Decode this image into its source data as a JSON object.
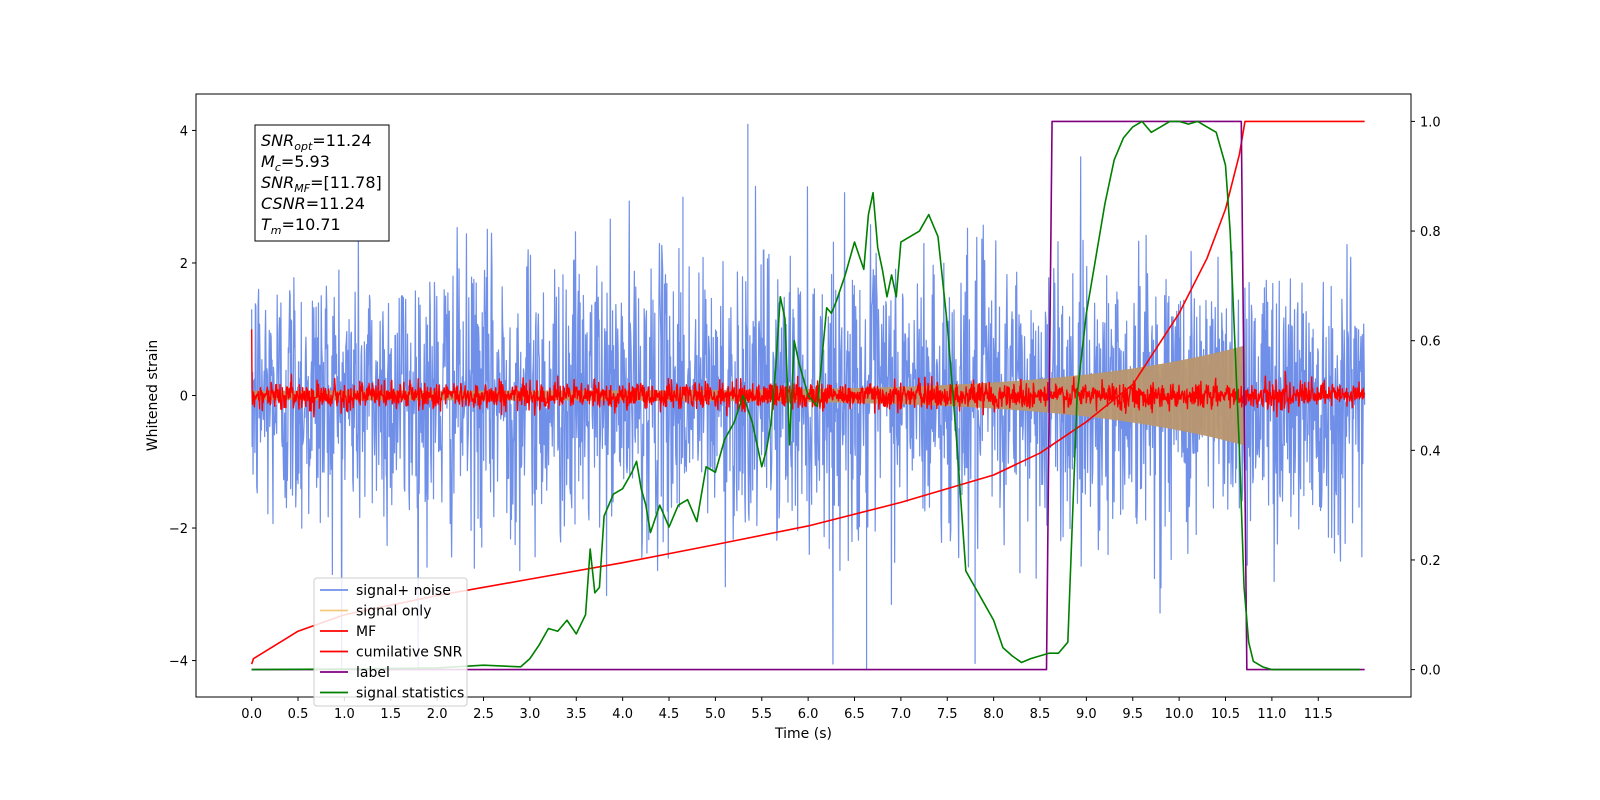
{
  "chart_data": {
    "type": "line",
    "xlabel": "Time (s)",
    "ylabel": "Whitened strain",
    "y2label": "",
    "xlim": [
      -0.6,
      12.5
    ],
    "ylim": [
      -4.55,
      4.55
    ],
    "y2lim": [
      -0.05,
      1.05
    ],
    "x_ticks": [
      "0.0",
      "0.5",
      "1.0",
      "1.5",
      "2.0",
      "2.5",
      "3.0",
      "3.5",
      "4.0",
      "4.5",
      "5.0",
      "5.5",
      "6.0",
      "6.5",
      "7.0",
      "7.5",
      "8.0",
      "8.5",
      "9.0",
      "9.5",
      "10.0",
      "10.5",
      "11.0",
      "11.5"
    ],
    "y_ticks": [
      "−4",
      "−2",
      "0",
      "2",
      "4"
    ],
    "y2_ticks": [
      "0.0",
      "0.2",
      "0.4",
      "0.6",
      "0.8",
      "1.0"
    ],
    "annotation": [
      {
        "base": "SNR",
        "sub": "opt",
        "value": "=11.24"
      },
      {
        "base": "M",
        "sub": "c",
        "value": "=5.93"
      },
      {
        "base": "SNR",
        "sub": "MF",
        "value": "=[11.78]"
      },
      {
        "base": "CSNR",
        "sub": "",
        "value": "=11.24"
      },
      {
        "base": "T",
        "sub": "m",
        "value": "=10.71"
      }
    ],
    "legend_position": "lower-left",
    "series": [
      {
        "name": "signal+ noise",
        "color": "#6f8fe8",
        "axis": "left",
        "kind": "noise",
        "duration": 12.0,
        "std": 1.05,
        "range": [
          -4.15,
          4.1
        ]
      },
      {
        "name": "signal only",
        "color": "#f5c97a",
        "axis": "left",
        "kind": "chirp",
        "t_merge": 10.71,
        "amplitude_start": 0.05,
        "amplitude_peak": 0.7
      },
      {
        "name": "MF",
        "color": "#ff0000",
        "axis": "left",
        "kind": "noise",
        "duration": 12.0,
        "std": 0.1
      },
      {
        "name": "cumilative SNR",
        "color": "#ff0000",
        "axis": "right",
        "x": [
          0.0,
          0.02,
          0.5,
          1.0,
          2.0,
          3.0,
          4.0,
          5.0,
          6.0,
          7.0,
          8.0,
          8.5,
          9.0,
          9.5,
          10.0,
          10.3,
          10.5,
          10.65,
          10.71,
          12.0
        ],
        "y": [
          0.01,
          0.02,
          0.07,
          0.1,
          0.135,
          0.165,
          0.195,
          0.228,
          0.262,
          0.305,
          0.355,
          0.395,
          0.452,
          0.52,
          0.65,
          0.75,
          0.84,
          0.94,
          1.0,
          1.0
        ]
      },
      {
        "name": "label",
        "color": "#800080",
        "axis": "right",
        "x": [
          0.0,
          8.57,
          8.63,
          10.67,
          10.73,
          12.0
        ],
        "y": [
          0.0,
          0.0,
          1.0,
          1.0,
          0.0,
          0.0
        ]
      },
      {
        "name": "signal statistics",
        "color": "#008000",
        "axis": "right",
        "x": [
          0.0,
          1.0,
          2.0,
          2.5,
          2.9,
          3.0,
          3.1,
          3.2,
          3.3,
          3.4,
          3.5,
          3.6,
          3.65,
          3.7,
          3.75,
          3.8,
          3.9,
          4.0,
          4.1,
          4.15,
          4.2,
          4.25,
          4.3,
          4.4,
          4.5,
          4.6,
          4.7,
          4.8,
          4.9,
          5.0,
          5.1,
          5.2,
          5.3,
          5.4,
          5.5,
          5.55,
          5.6,
          5.65,
          5.7,
          5.75,
          5.8,
          5.85,
          5.9,
          6.0,
          6.1,
          6.2,
          6.25,
          6.3,
          6.4,
          6.5,
          6.6,
          6.65,
          6.7,
          6.75,
          6.8,
          6.85,
          6.9,
          6.95,
          7.0,
          7.1,
          7.2,
          7.3,
          7.4,
          7.5,
          7.6,
          7.7,
          7.8,
          7.9,
          8.0,
          8.1,
          8.2,
          8.3,
          8.4,
          8.5,
          8.6,
          8.7,
          8.8,
          8.9,
          9.0,
          9.1,
          9.2,
          9.3,
          9.4,
          9.5,
          9.6,
          9.7,
          9.8,
          9.9,
          10.0,
          10.1,
          10.2,
          10.3,
          10.4,
          10.5,
          10.55,
          10.6,
          10.65,
          10.7,
          10.75,
          10.8,
          10.9,
          11.0,
          11.5,
          11.95
        ],
        "y": [
          0.0,
          0.001,
          0.003,
          0.008,
          0.005,
          0.02,
          0.045,
          0.075,
          0.07,
          0.09,
          0.065,
          0.1,
          0.22,
          0.14,
          0.15,
          0.28,
          0.32,
          0.33,
          0.36,
          0.38,
          0.33,
          0.3,
          0.25,
          0.3,
          0.26,
          0.3,
          0.31,
          0.27,
          0.37,
          0.36,
          0.42,
          0.45,
          0.5,
          0.45,
          0.37,
          0.4,
          0.45,
          0.55,
          0.68,
          0.64,
          0.41,
          0.6,
          0.56,
          0.5,
          0.48,
          0.66,
          0.65,
          0.67,
          0.72,
          0.78,
          0.73,
          0.83,
          0.87,
          0.77,
          0.73,
          0.68,
          0.72,
          0.68,
          0.78,
          0.79,
          0.8,
          0.83,
          0.79,
          0.63,
          0.42,
          0.18,
          0.15,
          0.12,
          0.09,
          0.04,
          0.025,
          0.013,
          0.02,
          0.025,
          0.03,
          0.03,
          0.05,
          0.5,
          0.65,
          0.75,
          0.85,
          0.93,
          0.97,
          0.99,
          1.0,
          0.98,
          0.99,
          1.0,
          1.0,
          0.995,
          1.0,
          0.99,
          0.98,
          0.92,
          0.8,
          0.6,
          0.4,
          0.15,
          0.05,
          0.015,
          0.005,
          0.0,
          0.0,
          0.0
        ]
      }
    ]
  }
}
